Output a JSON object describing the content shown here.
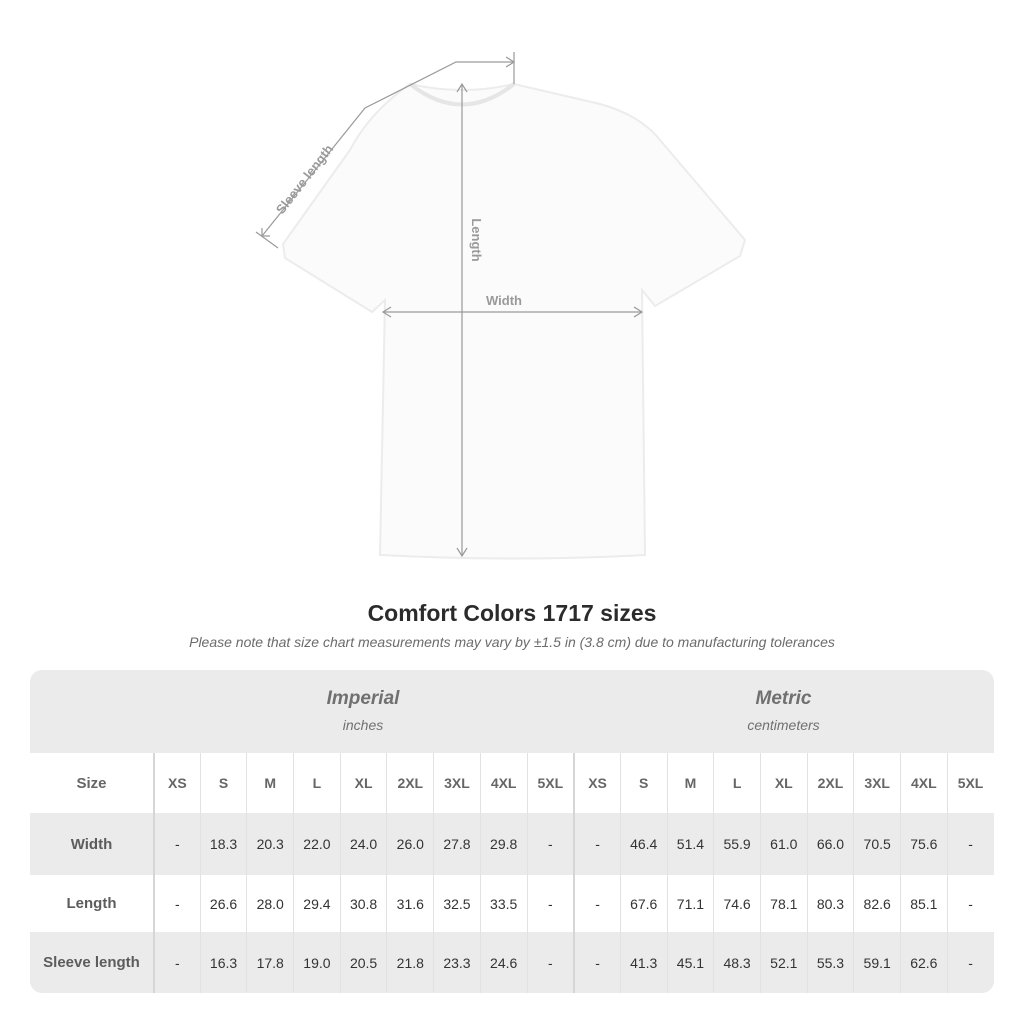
{
  "diagram": {
    "sleeve_label": "Sleeve length",
    "length_label": "Length",
    "width_label": "Width"
  },
  "title": "Comfort Colors 1717 sizes",
  "note": "Please note that size chart measurements may vary by ±1.5 in (3.8 cm) due to manufacturing tolerances",
  "table": {
    "imperial": {
      "name": "Imperial",
      "unit": "inches"
    },
    "metric": {
      "name": "Metric",
      "unit": "centimeters"
    },
    "size_label": "Size",
    "sizes": [
      "XS",
      "S",
      "M",
      "L",
      "XL",
      "2XL",
      "3XL",
      "4XL",
      "5XL"
    ],
    "rows": [
      {
        "label": "Width",
        "imperial": [
          "-",
          "18.3",
          "20.3",
          "22.0",
          "24.0",
          "26.0",
          "27.8",
          "29.8",
          "-"
        ],
        "metric": [
          "-",
          "46.4",
          "51.4",
          "55.9",
          "61.0",
          "66.0",
          "70.5",
          "75.6",
          "-"
        ]
      },
      {
        "label": "Length",
        "imperial": [
          "-",
          "26.6",
          "28.0",
          "29.4",
          "30.8",
          "31.6",
          "32.5",
          "33.5",
          "-"
        ],
        "metric": [
          "-",
          "67.6",
          "71.1",
          "74.6",
          "78.1",
          "80.3",
          "82.6",
          "85.1",
          "-"
        ]
      },
      {
        "label": "Sleeve length",
        "imperial": [
          "-",
          "16.3",
          "17.8",
          "19.0",
          "20.5",
          "21.8",
          "23.3",
          "24.6",
          "-"
        ],
        "metric": [
          "-",
          "41.3",
          "45.1",
          "48.3",
          "52.1",
          "55.3",
          "59.1",
          "62.6",
          "-"
        ]
      }
    ]
  }
}
